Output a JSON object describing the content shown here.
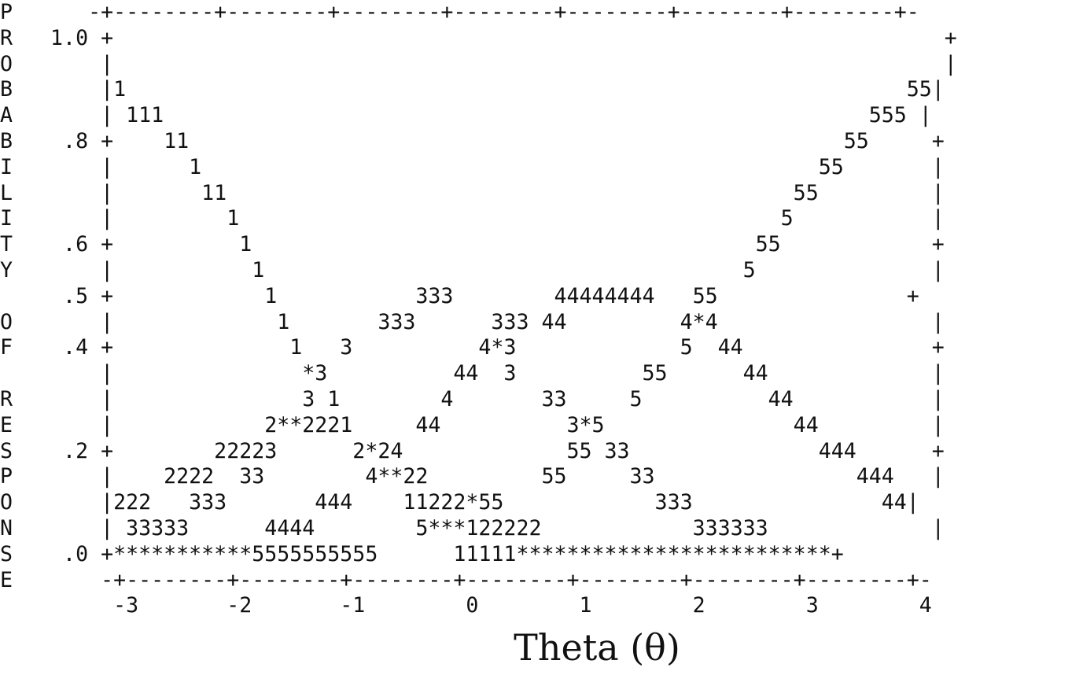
{
  "chart_data": {
    "type": "line",
    "title": "",
    "ylabel": "PROBABILITY OF RESPONSE",
    "xlabel": "Theta (θ)",
    "xlim": [
      -3,
      4
    ],
    "ylim": [
      0,
      1
    ],
    "x_ticks": [
      "-3",
      "-2",
      "-1",
      "0",
      "1",
      "2",
      "3",
      "4"
    ],
    "y_ticks": [
      "1.0",
      ".8",
      ".6",
      ".5",
      ".4",
      ".2",
      ".0"
    ],
    "series": [
      {
        "name": "1",
        "x": [
          -3,
          -2.5,
          -2,
          -1.5,
          -1,
          -0.5,
          0,
          0.5,
          1
        ],
        "y": [
          0.92,
          0.8,
          0.7,
          0.53,
          0.29,
          0.1,
          0.05,
          0.02,
          0.0
        ]
      },
      {
        "name": "2",
        "x": [
          -3,
          -2.5,
          -2,
          -1.5,
          -1,
          -0.5,
          0,
          0.5,
          1
        ],
        "y": [
          0.1,
          0.15,
          0.2,
          0.25,
          0.25,
          0.2,
          0.12,
          0.05,
          0.02
        ]
      },
      {
        "name": "3",
        "x": [
          -3,
          -2,
          -1,
          0,
          0.5,
          1,
          1.5,
          2,
          3
        ],
        "y": [
          0.05,
          0.15,
          0.35,
          0.5,
          0.4,
          0.25,
          0.15,
          0.1,
          0.05
        ]
      },
      {
        "name": "4",
        "x": [
          -2,
          -1,
          0,
          0.5,
          1,
          2,
          3,
          4
        ],
        "y": [
          0.05,
          0.1,
          0.3,
          0.45,
          0.5,
          0.4,
          0.2,
          0.1
        ]
      },
      {
        "name": "5",
        "x": [
          -1,
          0,
          0.5,
          1,
          2,
          3,
          4
        ],
        "y": [
          0.0,
          0.05,
          0.15,
          0.25,
          0.5,
          0.8,
          0.92
        ]
      }
    ],
    "plot_text": [
      "P      -+--------+--------+--------+--------+--------+--------+--------+-",
      "R   1.0 +                                                                  +",
      "O       |                                                                  |",
      "B       |1                                                              55|",
      "A       | 111                                                        555 |",
      "B    .8 +    11                                                    55     +",
      "I       |      1                                                 55       |",
      "L       |       11                                             55         |",
      "I       |         1                                           5           |",
      "T    .6 +          1                                        55            +",
      "Y       |           1                                      5              |",
      "     .5 +            1           333        44444444   55               +",
      "O       |             1       333      333 44         4*4                 |",
      "F    .4 +              1   3          4*3             5  44               +",
      "        |               *3          44  3          55      44             |",
      "R       |               3 1        4       33     5          44           |",
      "E       |            2**2221     44          3*5               44         |",
      "S    .2 +        22223      2*24             55 33               444      +",
      "P       |    2222  33        4**22         55     33                444   |",
      "O       |222   333       444    11222*55            333               44|",
      "N       | 33333      4444        5***122222            333333             |",
      "S    .0 +***********5555555555      11111*************************+",
      "E       -+--------+--------+--------+--------+--------+--------+--------+-",
      "         -3       -2       -1        0        1        2        3        4"
    ]
  }
}
